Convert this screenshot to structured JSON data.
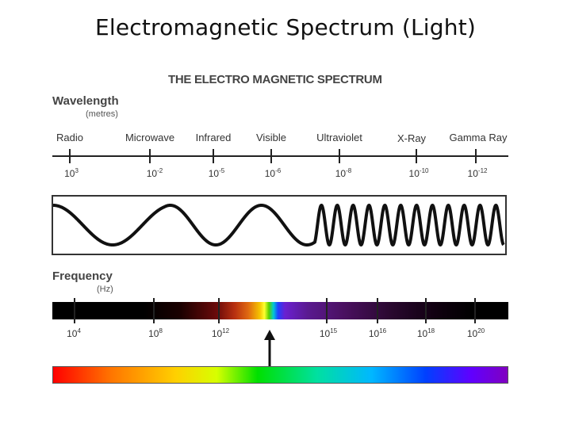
{
  "slide_title": "Electromagnetic Spectrum (Light)",
  "diagram_title": "THE ELECTRO MAGNETIC SPECTRUM",
  "wavelength_axis": {
    "heading": "Wavelength",
    "unit": "(metres)",
    "bands": [
      {
        "label": "Radio",
        "base": "10",
        "exp": "3"
      },
      {
        "label": "Microwave",
        "base": "10",
        "exp": "-2"
      },
      {
        "label": "Infrared",
        "base": "10",
        "exp": "-5"
      },
      {
        "label": "Visible",
        "base": "10",
        "exp": "-6"
      },
      {
        "label": "Ultraviolet",
        "base": "10",
        "exp": "-8"
      },
      {
        "label": "X-Ray",
        "base": "10",
        "exp": "-10"
      },
      {
        "label": "Gamma Ray",
        "base": "10",
        "exp": "-12"
      }
    ]
  },
  "frequency_axis": {
    "heading": "Frequency",
    "unit": "(Hz)",
    "ticks": [
      {
        "base": "10",
        "exp": "4"
      },
      {
        "base": "10",
        "exp": "8"
      },
      {
        "base": "10",
        "exp": "12"
      },
      {
        "base": "10",
        "exp": "15"
      },
      {
        "base": "10",
        "exp": "16"
      },
      {
        "base": "10",
        "exp": "18"
      },
      {
        "base": "10",
        "exp": "20"
      }
    ]
  },
  "colors": {
    "axis_line": "#222222",
    "wave_stroke": "#111111"
  }
}
